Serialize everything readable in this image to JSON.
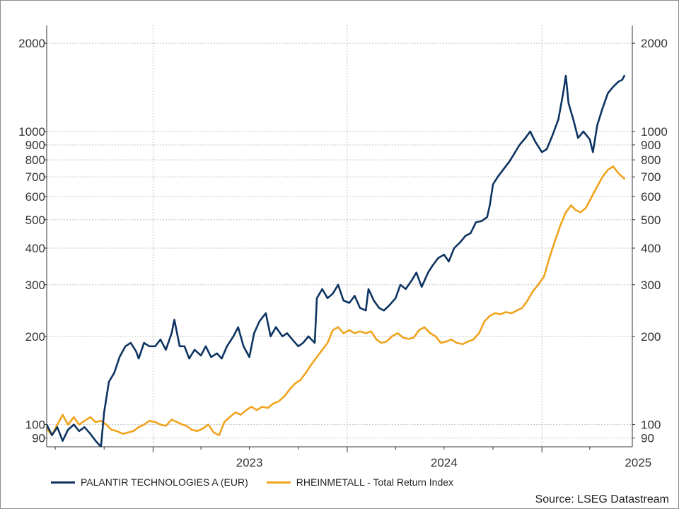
{
  "chart_data": {
    "type": "line",
    "title": "",
    "xlabel": "",
    "ylabel": "",
    "y_scale": "log",
    "ylim": [
      84,
      2300
    ],
    "xlim": [
      "2022-06-15",
      "2025-06-20"
    ],
    "y_ticks": [
      90,
      100,
      200,
      300,
      400,
      500,
      600,
      700,
      800,
      900,
      1000,
      2000
    ],
    "y_tick_labels": [
      "90",
      "100",
      "200",
      "300",
      "400",
      "500",
      "600",
      "700",
      "800",
      "900",
      "1000",
      "2000"
    ],
    "x_ticks": [
      "2023",
      "2024",
      "2025"
    ],
    "grid": true,
    "legend_position": "bottom-left",
    "source": "Source: LSEG Datastream",
    "series": [
      {
        "name": "PALANTIR TECHNOLOGIES A (EUR)",
        "color": "#0d3461",
        "points": [
          [
            "2022-06-15",
            100
          ],
          [
            "2022-06-25",
            92
          ],
          [
            "2022-07-05",
            98
          ],
          [
            "2022-07-15",
            88
          ],
          [
            "2022-07-25",
            96
          ],
          [
            "2022-08-05",
            100
          ],
          [
            "2022-08-15",
            95
          ],
          [
            "2022-08-25",
            98
          ],
          [
            "2022-09-05",
            93
          ],
          [
            "2022-09-15",
            88
          ],
          [
            "2022-09-25",
            84
          ],
          [
            "2022-10-01",
            110
          ],
          [
            "2022-10-10",
            140
          ],
          [
            "2022-10-20",
            150
          ],
          [
            "2022-10-30",
            170
          ],
          [
            "2022-11-10",
            185
          ],
          [
            "2022-11-20",
            190
          ],
          [
            "2022-11-30",
            178
          ],
          [
            "2022-12-05",
            168
          ],
          [
            "2022-12-15",
            190
          ],
          [
            "2022-12-25",
            185
          ],
          [
            "2023-01-05",
            185
          ],
          [
            "2023-01-15",
            195
          ],
          [
            "2023-01-25",
            180
          ],
          [
            "2023-02-05",
            205
          ],
          [
            "2023-02-10",
            228
          ],
          [
            "2023-02-20",
            185
          ],
          [
            "2023-03-01",
            185
          ],
          [
            "2023-03-10",
            168
          ],
          [
            "2023-03-20",
            180
          ],
          [
            "2023-04-01",
            172
          ],
          [
            "2023-04-10",
            185
          ],
          [
            "2023-04-20",
            170
          ],
          [
            "2023-05-01",
            175
          ],
          [
            "2023-05-10",
            168
          ],
          [
            "2023-05-20",
            185
          ],
          [
            "2023-06-01",
            200
          ],
          [
            "2023-06-10",
            215
          ],
          [
            "2023-06-20",
            185
          ],
          [
            "2023-07-01",
            170
          ],
          [
            "2023-07-10",
            205
          ],
          [
            "2023-07-20",
            225
          ],
          [
            "2023-08-01",
            240
          ],
          [
            "2023-08-10",
            200
          ],
          [
            "2023-08-20",
            215
          ],
          [
            "2023-09-01",
            200
          ],
          [
            "2023-09-10",
            205
          ],
          [
            "2023-09-20",
            195
          ],
          [
            "2023-10-01",
            185
          ],
          [
            "2023-10-10",
            190
          ],
          [
            "2023-10-20",
            200
          ],
          [
            "2023-11-01",
            190
          ],
          [
            "2023-11-05",
            270
          ],
          [
            "2023-11-15",
            290
          ],
          [
            "2023-11-25",
            270
          ],
          [
            "2023-12-05",
            280
          ],
          [
            "2023-12-15",
            300
          ],
          [
            "2023-12-25",
            265
          ],
          [
            "2024-01-05",
            260
          ],
          [
            "2024-01-15",
            275
          ],
          [
            "2024-01-25",
            250
          ],
          [
            "2024-02-05",
            245
          ],
          [
            "2024-02-10",
            290
          ],
          [
            "2024-02-20",
            265
          ],
          [
            "2024-03-01",
            250
          ],
          [
            "2024-03-10",
            245
          ],
          [
            "2024-03-20",
            255
          ],
          [
            "2024-04-01",
            270
          ],
          [
            "2024-04-10",
            300
          ],
          [
            "2024-04-20",
            290
          ],
          [
            "2024-05-01",
            310
          ],
          [
            "2024-05-10",
            330
          ],
          [
            "2024-05-20",
            295
          ],
          [
            "2024-06-01",
            330
          ],
          [
            "2024-06-10",
            350
          ],
          [
            "2024-06-20",
            370
          ],
          [
            "2024-07-01",
            380
          ],
          [
            "2024-07-10",
            360
          ],
          [
            "2024-07-20",
            400
          ],
          [
            "2024-08-01",
            420
          ],
          [
            "2024-08-10",
            440
          ],
          [
            "2024-08-20",
            450
          ],
          [
            "2024-08-30",
            490
          ],
          [
            "2024-09-10",
            495
          ],
          [
            "2024-09-20",
            510
          ],
          [
            "2024-09-25",
            560
          ],
          [
            "2024-10-01",
            660
          ],
          [
            "2024-10-10",
            700
          ],
          [
            "2024-10-20",
            740
          ],
          [
            "2024-11-01",
            790
          ],
          [
            "2024-11-10",
            840
          ],
          [
            "2024-11-20",
            900
          ],
          [
            "2024-12-01",
            950
          ],
          [
            "2024-12-10",
            1000
          ],
          [
            "2024-12-20",
            920
          ],
          [
            "2025-01-01",
            850
          ],
          [
            "2025-01-10",
            870
          ],
          [
            "2025-01-20",
            960
          ],
          [
            "2025-02-01",
            1100
          ],
          [
            "2025-02-10",
            1350
          ],
          [
            "2025-02-15",
            1550
          ],
          [
            "2025-02-20",
            1250
          ],
          [
            "2025-03-01",
            1100
          ],
          [
            "2025-03-10",
            950
          ],
          [
            "2025-03-20",
            1000
          ],
          [
            "2025-04-01",
            940
          ],
          [
            "2025-04-07",
            850
          ],
          [
            "2025-04-15",
            1050
          ],
          [
            "2025-04-25",
            1200
          ],
          [
            "2025-05-05",
            1350
          ],
          [
            "2025-05-15",
            1420
          ],
          [
            "2025-05-25",
            1480
          ],
          [
            "2025-06-01",
            1500
          ],
          [
            "2025-06-05",
            1550
          ]
        ]
      },
      {
        "name": "RHEINMETALL - Total Return Index",
        "color": "#f0a31c",
        "points": [
          [
            "2022-06-15",
            97
          ],
          [
            "2022-06-25",
            92
          ],
          [
            "2022-07-05",
            100
          ],
          [
            "2022-07-15",
            108
          ],
          [
            "2022-07-25",
            100
          ],
          [
            "2022-08-05",
            106
          ],
          [
            "2022-08-15",
            100
          ],
          [
            "2022-08-25",
            103
          ],
          [
            "2022-09-05",
            106
          ],
          [
            "2022-09-15",
            102
          ],
          [
            "2022-09-25",
            103
          ],
          [
            "2022-10-05",
            100
          ],
          [
            "2022-10-15",
            96
          ],
          [
            "2022-10-25",
            95
          ],
          [
            "2022-11-05",
            93
          ],
          [
            "2022-11-15",
            94
          ],
          [
            "2022-11-25",
            95
          ],
          [
            "2022-12-05",
            98
          ],
          [
            "2022-12-15",
            100
          ],
          [
            "2022-12-25",
            103
          ],
          [
            "2023-01-05",
            102
          ],
          [
            "2023-01-15",
            100
          ],
          [
            "2023-01-25",
            99
          ],
          [
            "2023-02-05",
            104
          ],
          [
            "2023-02-15",
            102
          ],
          [
            "2023-02-25",
            100
          ],
          [
            "2023-03-05",
            99
          ],
          [
            "2023-03-15",
            96
          ],
          [
            "2023-03-25",
            95
          ],
          [
            "2023-04-05",
            97
          ],
          [
            "2023-04-15",
            100
          ],
          [
            "2023-04-25",
            94
          ],
          [
            "2023-05-05",
            92
          ],
          [
            "2023-05-15",
            102
          ],
          [
            "2023-05-25",
            106
          ],
          [
            "2023-06-05",
            110
          ],
          [
            "2023-06-15",
            108
          ],
          [
            "2023-06-25",
            112
          ],
          [
            "2023-07-05",
            115
          ],
          [
            "2023-07-15",
            112
          ],
          [
            "2023-07-25",
            115
          ],
          [
            "2023-08-05",
            114
          ],
          [
            "2023-08-15",
            118
          ],
          [
            "2023-08-25",
            120
          ],
          [
            "2023-09-05",
            125
          ],
          [
            "2023-09-15",
            132
          ],
          [
            "2023-09-25",
            138
          ],
          [
            "2023-10-05",
            142
          ],
          [
            "2023-10-15",
            150
          ],
          [
            "2023-10-25",
            160
          ],
          [
            "2023-11-05",
            170
          ],
          [
            "2023-11-15",
            180
          ],
          [
            "2023-11-25",
            190
          ],
          [
            "2023-12-05",
            210
          ],
          [
            "2023-12-15",
            215
          ],
          [
            "2023-12-25",
            205
          ],
          [
            "2024-01-05",
            210
          ],
          [
            "2024-01-15",
            205
          ],
          [
            "2024-01-25",
            208
          ],
          [
            "2024-02-05",
            205
          ],
          [
            "2024-02-15",
            208
          ],
          [
            "2024-02-25",
            195
          ],
          [
            "2024-03-05",
            190
          ],
          [
            "2024-03-15",
            192
          ],
          [
            "2024-03-25",
            200
          ],
          [
            "2024-04-05",
            205
          ],
          [
            "2024-04-15",
            198
          ],
          [
            "2024-04-25",
            196
          ],
          [
            "2024-05-05",
            198
          ],
          [
            "2024-05-15",
            210
          ],
          [
            "2024-05-25",
            215
          ],
          [
            "2024-06-05",
            205
          ],
          [
            "2024-06-15",
            200
          ],
          [
            "2024-06-25",
            190
          ],
          [
            "2024-07-05",
            192
          ],
          [
            "2024-07-15",
            195
          ],
          [
            "2024-07-25",
            190
          ],
          [
            "2024-08-05",
            188
          ],
          [
            "2024-08-15",
            192
          ],
          [
            "2024-08-25",
            195
          ],
          [
            "2024-09-05",
            205
          ],
          [
            "2024-09-15",
            225
          ],
          [
            "2024-09-25",
            235
          ],
          [
            "2024-10-05",
            240
          ],
          [
            "2024-10-15",
            238
          ],
          [
            "2024-10-25",
            242
          ],
          [
            "2024-11-05",
            240
          ],
          [
            "2024-11-15",
            245
          ],
          [
            "2024-11-25",
            250
          ],
          [
            "2024-12-05",
            265
          ],
          [
            "2024-12-15",
            285
          ],
          [
            "2024-12-25",
            300
          ],
          [
            "2025-01-05",
            320
          ],
          [
            "2025-01-15",
            370
          ],
          [
            "2025-01-25",
            420
          ],
          [
            "2025-02-05",
            480
          ],
          [
            "2025-02-15",
            530
          ],
          [
            "2025-02-25",
            560
          ],
          [
            "2025-03-05",
            540
          ],
          [
            "2025-03-15",
            530
          ],
          [
            "2025-03-25",
            550
          ],
          [
            "2025-04-05",
            600
          ],
          [
            "2025-04-15",
            650
          ],
          [
            "2025-04-25",
            700
          ],
          [
            "2025-05-05",
            740
          ],
          [
            "2025-05-15",
            760
          ],
          [
            "2025-05-25",
            720
          ],
          [
            "2025-06-05",
            690
          ]
        ]
      }
    ]
  }
}
